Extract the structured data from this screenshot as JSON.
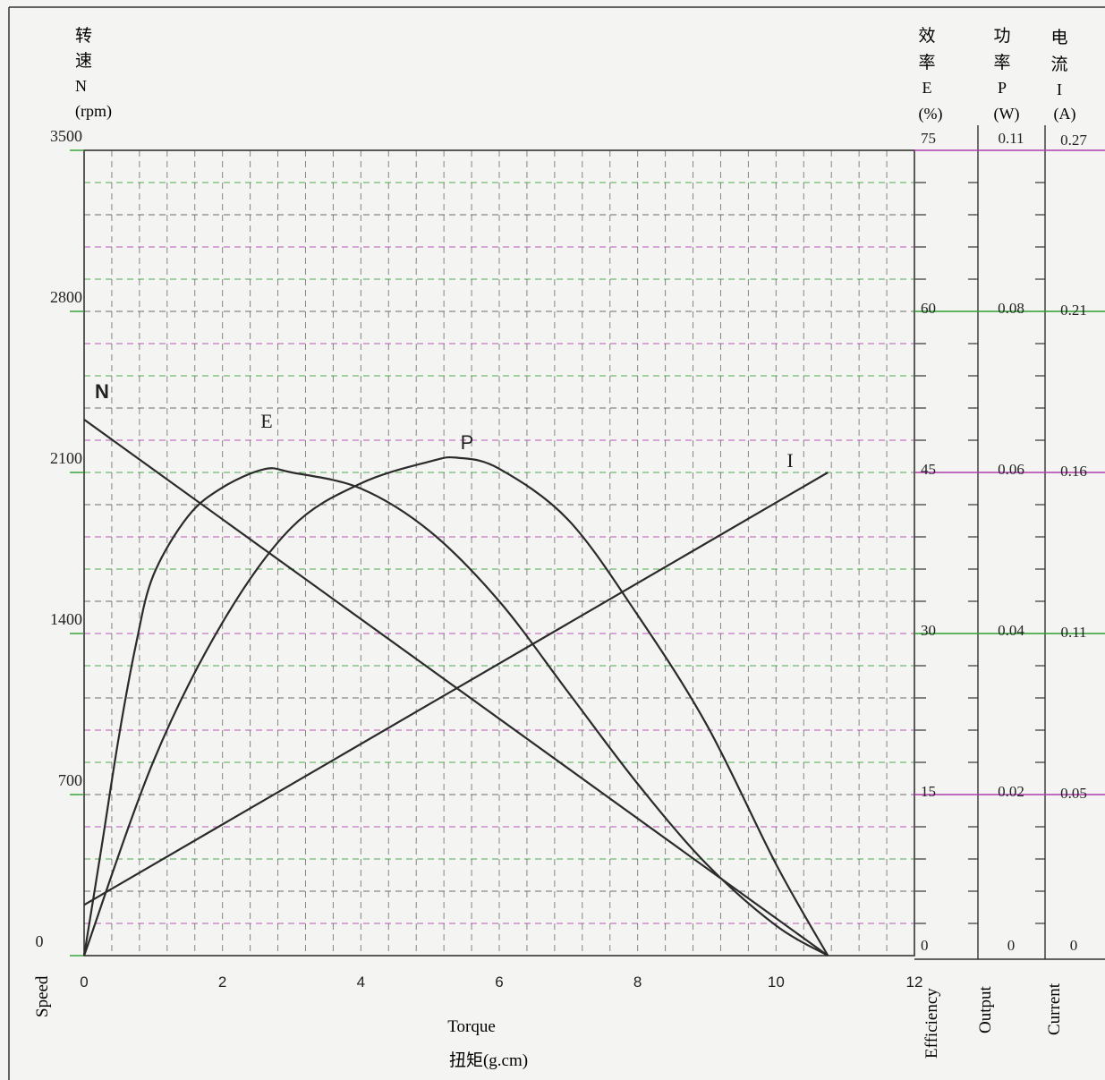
{
  "chart_data": {
    "type": "line",
    "x": {
      "label": "Torque",
      "label_cn": "扭矩(g.cm)",
      "range": [
        0,
        12
      ],
      "ticks": [
        "0",
        "2",
        "4",
        "6",
        "8",
        "10",
        "12"
      ]
    },
    "y_axes": {
      "speed": {
        "header": [
          "转",
          "速",
          "N",
          "(rpm)"
        ],
        "ticks": [
          "0",
          "700",
          "1400",
          "2100",
          "2800",
          "3500"
        ],
        "range": [
          0,
          3500
        ],
        "bottom_label": "Speed"
      },
      "efficiency": {
        "header": [
          "效",
          "率",
          "E",
          "(%)"
        ],
        "ticks": [
          "0",
          "15",
          "30",
          "45",
          "60",
          "75"
        ],
        "range": [
          0,
          75
        ],
        "bottom_label": "Efficiency"
      },
      "output": {
        "header": [
          "功",
          "率",
          "P",
          "(W)"
        ],
        "ticks": [
          "0",
          "0.02",
          "0.04",
          "0.06",
          "0.08",
          "0.11"
        ],
        "range": [
          0,
          0.11
        ],
        "bottom_label": "Output"
      },
      "current": {
        "header": [
          "电",
          "流",
          "I",
          "(A)"
        ],
        "ticks": [
          "0",
          "0.05",
          "0.11",
          "0.16",
          "0.21",
          "0.27"
        ],
        "range": [
          0,
          0.27
        ],
        "bottom_label": "Current"
      }
    },
    "series": [
      {
        "name": "N",
        "axis": "speed",
        "points": [
          [
            0,
            2330
          ],
          [
            10.75,
            0
          ]
        ]
      },
      {
        "name": "E",
        "axis": "efficiency",
        "points": [
          [
            0,
            0
          ],
          [
            0.25,
            10
          ],
          [
            0.5,
            20.3
          ],
          [
            0.75,
            29
          ],
          [
            1,
            35.4
          ],
          [
            1.5,
            40.9
          ],
          [
            2,
            43.6
          ],
          [
            2.6,
            45.3
          ],
          [
            3,
            45
          ],
          [
            4,
            43.5
          ],
          [
            5,
            39.5
          ],
          [
            6,
            33
          ],
          [
            7,
            24.5
          ],
          [
            8,
            16
          ],
          [
            9,
            8.5
          ],
          [
            10,
            2.8
          ],
          [
            10.75,
            0
          ]
        ]
      },
      {
        "name": "P",
        "axis": "output",
        "points": [
          [
            0,
            0
          ],
          [
            1,
            0.0265
          ],
          [
            2,
            0.0455
          ],
          [
            3,
            0.0585
          ],
          [
            4,
            0.0645
          ],
          [
            5,
            0.0675
          ],
          [
            5.4,
            0.068
          ],
          [
            6,
            0.0665
          ],
          [
            7,
            0.0595
          ],
          [
            8,
            0.0465
          ],
          [
            9,
            0.0315
          ],
          [
            10,
            0.0125
          ],
          [
            10.75,
            0
          ]
        ]
      },
      {
        "name": "I",
        "axis": "current",
        "points": [
          [
            0,
            0.017
          ],
          [
            10.75,
            0.162
          ]
        ]
      }
    ],
    "series_labels": [
      "N",
      "E",
      "P",
      "I"
    ],
    "grid": true,
    "colors": {
      "curve": "#2b2b2b",
      "grid_green": "#2e9d2e",
      "grid_magenta": "#b03cb0",
      "grid_black": "#555555"
    }
  }
}
